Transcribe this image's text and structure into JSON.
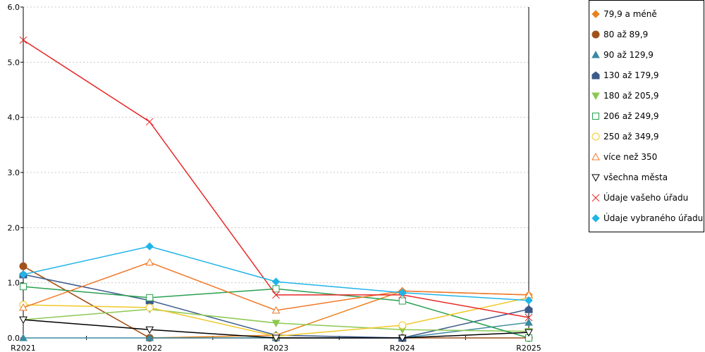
{
  "chart_data": {
    "type": "line",
    "categories": [
      "R2021",
      "R2022",
      "R2023",
      "R2024",
      "R2025"
    ],
    "ylim": [
      0,
      6
    ],
    "yticks": [
      "0.0",
      "1.0",
      "2.0",
      "3.0",
      "4.0",
      "5.0",
      "6.0"
    ],
    "grid": true,
    "legend_position": "right",
    "series": [
      {
        "name": "79,9 a méně",
        "color": "#e8821e",
        "marker": "diamond",
        "values": [
          1.3,
          0.0,
          0.05,
          0.85,
          0.78
        ]
      },
      {
        "name": "80 až 89,9",
        "color": "#a0521c",
        "marker": "circle-filled",
        "values": [
          1.3,
          0.0,
          0.0,
          0.0,
          0.0
        ]
      },
      {
        "name": "90 až 129,9",
        "color": "#3a8aa0",
        "marker": "triangle-up-filled",
        "values": [
          0.0,
          0.0,
          0.0,
          0.0,
          0.28
        ]
      },
      {
        "name": "130 až 179,9",
        "color": "#3c5a8a",
        "marker": "pentagon-filled",
        "values": [
          1.15,
          0.68,
          0.05,
          0.0,
          0.52
        ]
      },
      {
        "name": "180 až 205,9",
        "color": "#8cc850",
        "marker": "triangle-down-filled",
        "values": [
          0.33,
          0.52,
          0.27,
          0.15,
          0.12
        ]
      },
      {
        "name": "206 až 249,9",
        "color": "#28a050",
        "marker": "square-open",
        "values": [
          0.93,
          0.73,
          0.89,
          0.67,
          0.0
        ]
      },
      {
        "name": "250 až 349,9",
        "color": "#f0c828",
        "marker": "circle-open",
        "values": [
          0.6,
          0.55,
          0.03,
          0.23,
          0.73
        ]
      },
      {
        "name": "více než 350",
        "color": "#f07828",
        "marker": "triangle-up-open",
        "values": [
          0.55,
          1.37,
          0.5,
          0.85,
          0.78
        ]
      },
      {
        "name": "všechna města",
        "color": "#000000",
        "marker": "triangle-down-open",
        "values": [
          0.33,
          0.15,
          0.0,
          0.0,
          0.1
        ]
      },
      {
        "name": "Údaje vašeho úřadu",
        "color": "#e82828",
        "marker": "cross",
        "values": [
          5.4,
          3.92,
          0.78,
          0.78,
          0.37
        ]
      },
      {
        "name": "Údaje vybraného úřadu",
        "color": "#20b4e8",
        "marker": "diamond",
        "values": [
          1.15,
          1.66,
          1.02,
          0.82,
          0.68
        ]
      }
    ]
  }
}
